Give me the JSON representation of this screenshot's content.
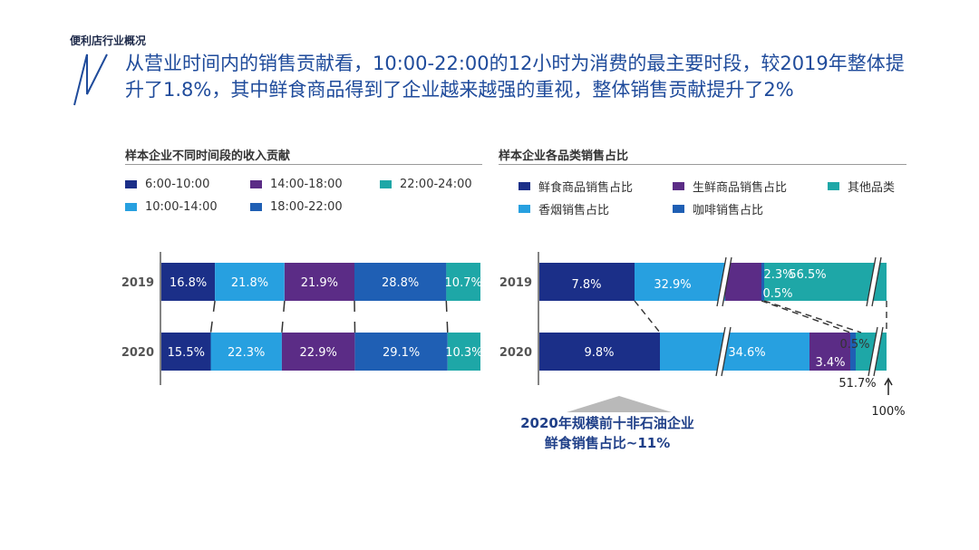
{
  "header": {
    "section_label": "便利店行业概况",
    "headline": "从营业时间内的销售贡献看，10:00-22:00的12小时为消费的最主要时段，较2019年整体提升了1.8%，其中鲜食商品得到了企业越来越强的重视，整体销售贡献提升了2%"
  },
  "colors": {
    "navy": "#1b2f88",
    "sky": "#27a0e0",
    "purple": "#5b2c86",
    "blue": "#1f5fb4",
    "teal": "#1ea7a7",
    "headline": "#1f4b9b"
  },
  "footnote": {
    "line1": "2020年规模前十非石油企业",
    "line2": "鲜食销售占比~11%"
  },
  "chart_data": [
    {
      "type": "bar",
      "orientation": "horizontal-stacked",
      "title": "样本企业不同时间段的收入贡献",
      "categories": [
        "2019",
        "2020"
      ],
      "series": [
        {
          "name": "6:00-10:00",
          "color": "#1b2f88",
          "values": [
            16.8,
            15.5
          ],
          "labels": [
            "16.8%",
            "15.5%"
          ]
        },
        {
          "name": "10:00-14:00",
          "color": "#27a0e0",
          "values": [
            21.8,
            22.3
          ],
          "labels": [
            "21.8%",
            "22.3%"
          ]
        },
        {
          "name": "14:00-18:00",
          "color": "#5b2c86",
          "values": [
            21.9,
            22.9
          ],
          "labels": [
            "21.9%",
            "22.9%"
          ]
        },
        {
          "name": "18:00-22:00",
          "color": "#1f5fb4",
          "values": [
            28.8,
            29.1
          ],
          "labels": [
            "28.8%",
            "29.1%"
          ]
        },
        {
          "name": "22:00-24:00",
          "color": "#1ea7a7",
          "values": [
            10.7,
            10.3
          ],
          "labels": [
            "10.7%",
            "10.3%"
          ]
        }
      ],
      "legend_order": [
        "6:00-10:00",
        "14:00-18:00",
        "22:00-24:00",
        "10:00-14:00",
        "18:00-22:00"
      ],
      "legend_position": "top"
    },
    {
      "type": "bar",
      "orientation": "horizontal-stacked-broken",
      "title": "样本企业各品类销售占比",
      "categories": [
        "2019",
        "2020"
      ],
      "series": [
        {
          "name": "鲜食商品销售占比",
          "color": "#1b2f88",
          "values": [
            7.8,
            9.8
          ],
          "labels": [
            "7.8%",
            "9.8%"
          ]
        },
        {
          "name": "香烟销售占比",
          "color": "#27a0e0",
          "values": [
            32.9,
            34.6
          ],
          "labels": [
            "32.9%",
            "34.6%"
          ]
        },
        {
          "name": "生鲜商品销售占比",
          "color": "#5b2c86",
          "values": [
            2.3,
            3.4
          ],
          "labels": [
            "2.3%",
            "3.4%"
          ]
        },
        {
          "name": "咖啡销售占比",
          "color": "#1f5fb4",
          "values": [
            0.5,
            0.5
          ],
          "labels": [
            "0.5%",
            "0.5%"
          ]
        },
        {
          "name": "其他品类",
          "color": "#1ea7a7",
          "values": [
            56.5,
            51.7
          ],
          "labels": [
            "56.5%",
            "51.7%"
          ]
        }
      ],
      "legend_order": [
        "鲜食商品销售占比",
        "生鲜商品销售占比",
        "其他品类",
        "香烟销售占比",
        "咖啡销售占比"
      ],
      "annotations": [
        "100%"
      ],
      "legend_position": "top"
    }
  ]
}
